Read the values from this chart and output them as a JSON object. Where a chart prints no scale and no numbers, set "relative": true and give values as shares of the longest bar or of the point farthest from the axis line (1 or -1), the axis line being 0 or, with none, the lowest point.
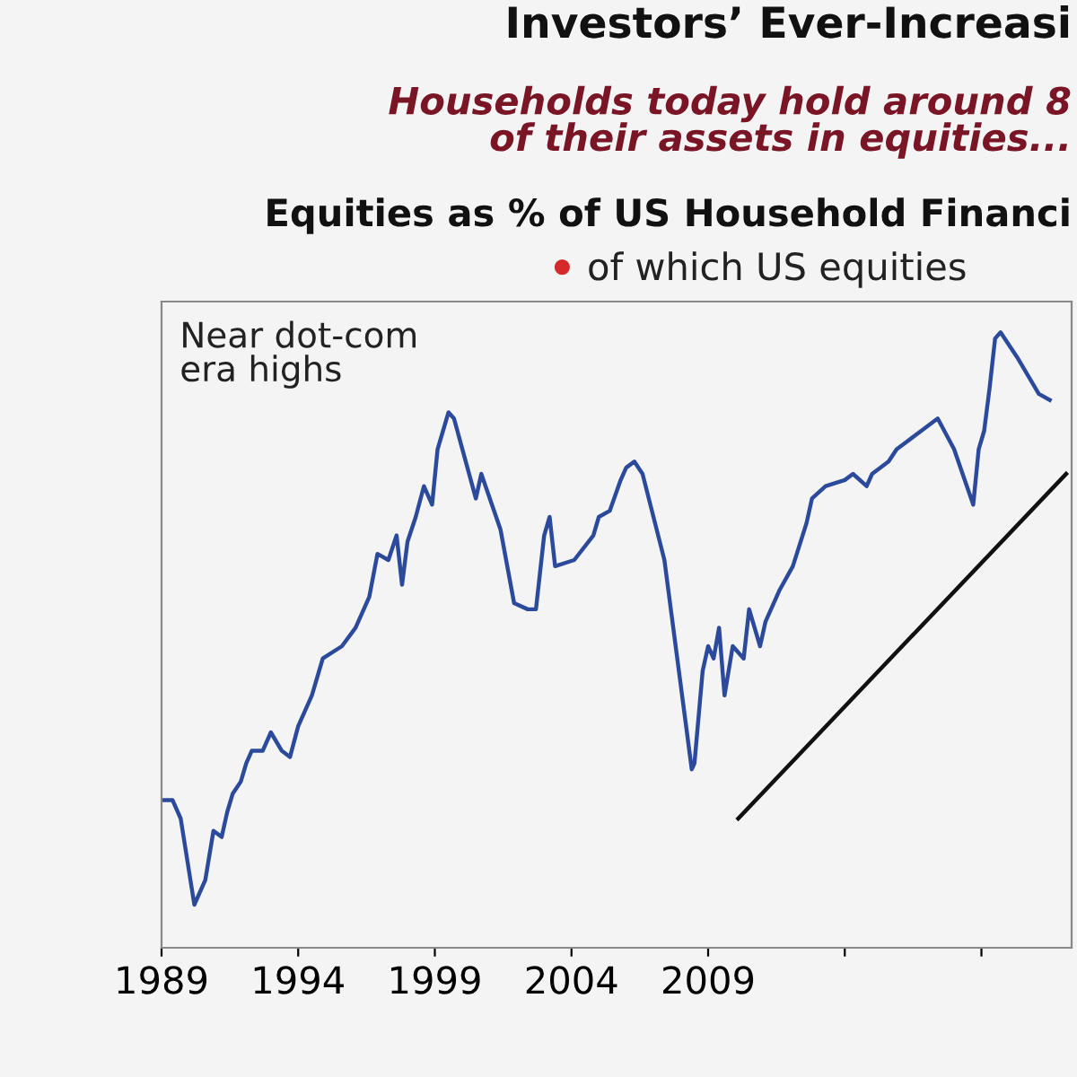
{
  "chart_data": {
    "type": "line",
    "title": "Investors’ Ever-Increasi",
    "subtitle": "Households today hold around 8\nof their assets in equities...",
    "relative": true,
    "grid": false,
    "legend": false,
    "marker": "none",
    "line_style": "solid",
    "xlim": [
      1989,
      2022.3
    ],
    "xticks": [
      1989,
      1994,
      1999,
      2004,
      2009,
      {
        "value": 2014,
        "label": null
      },
      {
        "value": 2019,
        "label": null
      }
    ],
    "annotations": [
      "Equities as % of US Household Financi",
      "of which US equities",
      "Near dot-com\nera highs"
    ],
    "series": [
      {
        "color": "#2b4a9c",
        "x": [
          1989.1,
          1989.4,
          1989.7,
          1990.2,
          1990.6,
          1990.9,
          1991.2,
          1991.4,
          1991.6,
          1991.9,
          1992.1,
          1992.3,
          1992.7,
          1993.0,
          1993.4,
          1993.7,
          1994.0,
          1994.5,
          1994.9,
          1995.6,
          1996.1,
          1996.6,
          1996.9,
          1997.3,
          1997.6,
          1997.8,
          1998.0,
          1998.3,
          1998.6,
          1998.9,
          1999.1,
          1999.3,
          1999.5,
          1999.7,
          2000.5,
          2000.7,
          2001.4,
          2001.9,
          2002.4,
          2002.7,
          2003.0,
          2003.2,
          2003.4,
          2004.1,
          2004.8,
          2005.0,
          2005.4,
          2005.8,
          2006.0,
          2006.3,
          2006.6,
          2007.4,
          2008.4,
          2008.5,
          2008.8,
          2009.0,
          2009.2,
          2009.4,
          2009.6,
          2009.9,
          2010.3,
          2010.5,
          2010.9,
          2011.1,
          2011.6,
          2012.1,
          2012.6,
          2012.8,
          2013.3,
          2014.0,
          2014.3,
          2014.8,
          2015.0,
          2015.6,
          2015.9,
          2016.2,
          2016.8,
          2017.4,
          2018.0,
          2018.7,
          2018.9,
          2019.1,
          2019.3,
          2019.5,
          2019.7,
          2020.3,
          2021.1,
          2021.5
        ],
        "values": [
          0.24,
          0.24,
          0.21,
          0.07,
          0.11,
          0.19,
          0.18,
          0.22,
          0.25,
          0.27,
          0.3,
          0.32,
          0.32,
          0.35,
          0.32,
          0.31,
          0.36,
          0.41,
          0.47,
          0.49,
          0.52,
          0.57,
          0.64,
          0.63,
          0.67,
          0.59,
          0.66,
          0.7,
          0.75,
          0.72,
          0.81,
          0.84,
          0.87,
          0.86,
          0.73,
          0.77,
          0.68,
          0.56,
          0.55,
          0.55,
          0.67,
          0.7,
          0.62,
          0.63,
          0.67,
          0.7,
          0.71,
          0.76,
          0.78,
          0.79,
          0.77,
          0.63,
          0.29,
          0.3,
          0.45,
          0.49,
          0.47,
          0.52,
          0.41,
          0.49,
          0.47,
          0.55,
          0.49,
          0.53,
          0.58,
          0.62,
          0.69,
          0.73,
          0.75,
          0.76,
          0.77,
          0.75,
          0.77,
          0.79,
          0.81,
          0.82,
          0.84,
          0.86,
          0.81,
          0.72,
          0.81,
          0.84,
          0.91,
          0.99,
          1.0,
          0.96,
          0.9,
          0.89
        ]
      },
      {
        "type": "line",
        "color": "#111111",
        "x": [
          2010.1,
          2022.1
        ],
        "values": [
          0.21,
          0.77
        ]
      }
    ]
  }
}
